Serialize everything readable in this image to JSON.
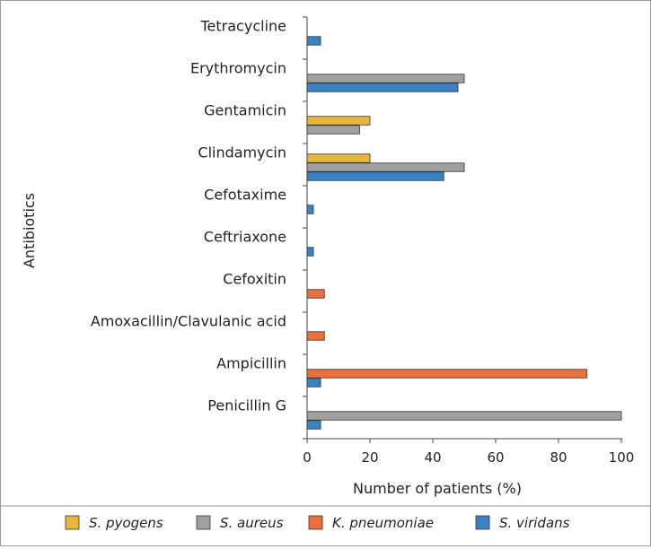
{
  "chart_data": {
    "type": "bar",
    "orientation": "horizontal",
    "title": "",
    "xlabel": "Number of patients (%)",
    "ylabel": "Antibiotics",
    "xlim": [
      0,
      100
    ],
    "xticks": [
      "0",
      "20",
      "40",
      "60",
      "80",
      "100"
    ],
    "categories": [
      "Tetracycline",
      "Erythromycin",
      "Gentamicin",
      "Clindamycin",
      "Cefotaxime",
      "Ceftriaxone",
      "Cefoxitin",
      "Amoxacillin/Clavulanic acid",
      "Ampicillin",
      "Penicillin G"
    ],
    "series": [
      {
        "name": "S. pyogens",
        "color": "#e5b83c",
        "values": [
          0,
          0,
          20,
          20,
          0,
          0,
          0,
          0,
          0,
          0
        ]
      },
      {
        "name": "S. aureus",
        "color": "#a0a0a0",
        "values": [
          0,
          50,
          16.7,
          50,
          0,
          0,
          0,
          0,
          0,
          100
        ]
      },
      {
        "name": "K. pneumoniae",
        "color": "#e8703a",
        "values": [
          0,
          0,
          0,
          0,
          0,
          0,
          5.5,
          5.5,
          89,
          0
        ]
      },
      {
        "name": "S. viridans",
        "color": "#3b82c4",
        "values": [
          4.3,
          48,
          0,
          43.5,
          2,
          2,
          0,
          0,
          4.3,
          4.3
        ]
      }
    ],
    "legend_position": "bottom"
  }
}
